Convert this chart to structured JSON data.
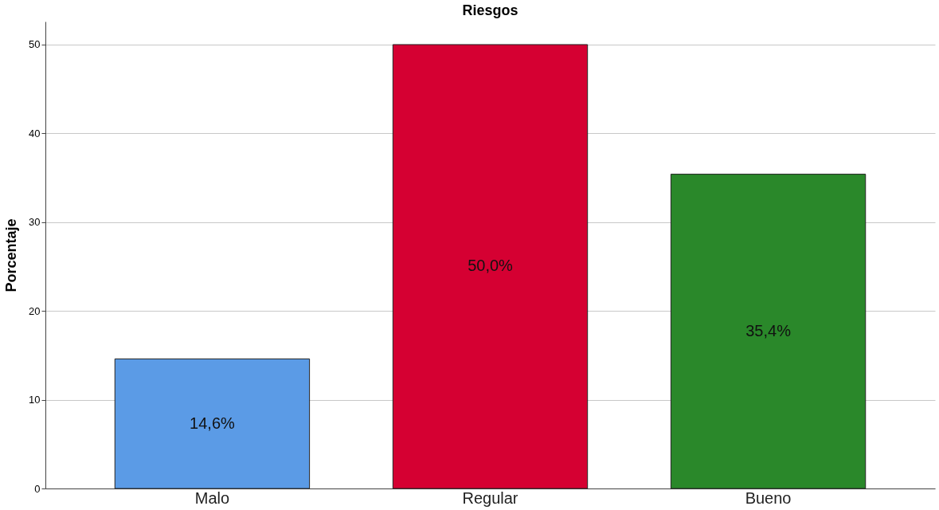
{
  "chart_data": {
    "type": "bar",
    "title": "Riesgos",
    "ylabel": "Porcentaje",
    "categories": [
      "Malo",
      "Regular",
      "Bueno"
    ],
    "values": [
      14.6,
      50.0,
      35.4
    ],
    "colors": [
      "#5b9be6",
      "#d50032",
      "#2a882a"
    ],
    "value_labels": [
      "14,6%",
      "50,0%",
      "35,4%"
    ],
    "ylim": [
      0,
      52.6
    ],
    "yticks": [
      0,
      10,
      20,
      30,
      40,
      50
    ],
    "grid": "y",
    "legend": false
  }
}
